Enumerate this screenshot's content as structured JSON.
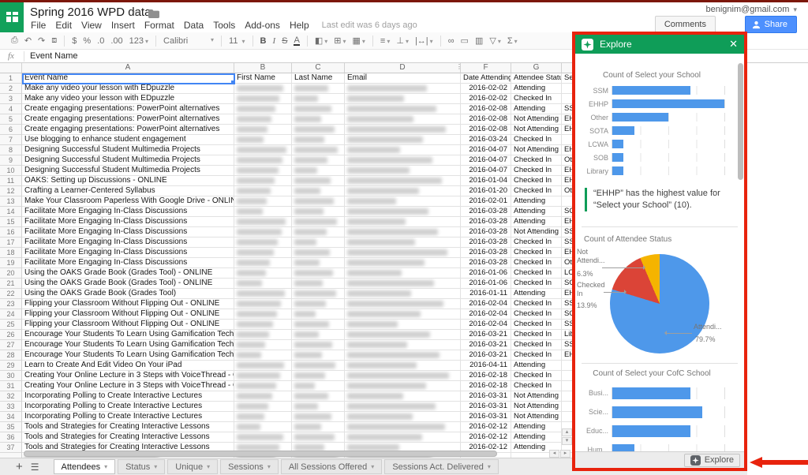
{
  "app": {
    "doc_title": "Spring 2016 WPD data",
    "menu_items": [
      "File",
      "Edit",
      "View",
      "Insert",
      "Format",
      "Data",
      "Tools",
      "Add-ons",
      "Help"
    ],
    "last_edit": "Last edit was 6 days ago",
    "account_email": "benignim@gmail.com",
    "comments_label": "Comments",
    "share_label": "Share"
  },
  "toolbar": {
    "currency": "$",
    "percent": "%",
    "dec_less": ".0",
    "dec_more": ".00",
    "number_format": "123",
    "font_name": "Calibri",
    "font_size": "11",
    "bold": "B",
    "italic": "I",
    "strike": "S",
    "text_color": "A",
    "sum": "Σ"
  },
  "formula_bar": {
    "fx": "fx",
    "value": "Event Name"
  },
  "grid": {
    "column_letters": [
      "A",
      "B",
      "C",
      "D",
      "F",
      "G"
    ],
    "rows": [
      {
        "n": "1",
        "event": "Event Name",
        "b": "First Name",
        "c": "Last Name",
        "d": "Email",
        "date": "Date Attending",
        "status": "Attendee Status",
        "school": "Sele"
      },
      {
        "n": "2",
        "event": "Make any video your lesson with EDpuzzle",
        "date": "2016-02-02",
        "status": "Attending",
        "school": ""
      },
      {
        "n": "3",
        "event": "Make any video your lesson with EDpuzzle",
        "date": "2016-02-02",
        "status": "Checked In",
        "school": ""
      },
      {
        "n": "4",
        "event": "Create engaging presentations: PowerPoint alternatives",
        "date": "2016-02-08",
        "status": "Attending",
        "school": "SSM"
      },
      {
        "n": "5",
        "event": "Create engaging presentations: PowerPoint alternatives",
        "date": "2016-02-08",
        "status": "Not Attending",
        "school": "EHH"
      },
      {
        "n": "6",
        "event": "Create engaging presentations: PowerPoint alternatives",
        "date": "2016-02-08",
        "status": "Not Attending",
        "school": "EHH"
      },
      {
        "n": "7",
        "event": "Use blogging to enhance student engagement",
        "date": "2016-03-24",
        "status": "Checked In",
        "school": ""
      },
      {
        "n": "8",
        "event": "Designing Successful Student Multimedia Projects",
        "date": "2016-04-07",
        "status": "Not Attending",
        "school": "EHH"
      },
      {
        "n": "9",
        "event": "Designing Successful Student Multimedia Projects",
        "date": "2016-04-07",
        "status": "Checked In",
        "school": "Oth"
      },
      {
        "n": "10",
        "event": "Designing Successful Student Multimedia Projects",
        "date": "2016-04-07",
        "status": "Checked In",
        "school": "EHH"
      },
      {
        "n": "11",
        "event": "OAKS: Setting up Discussions - ONLINE",
        "date": "2016-01-04",
        "status": "Checked In",
        "school": "EHH"
      },
      {
        "n": "12",
        "event": "Crafting a Learner-Centered Syllabus",
        "date": "2016-01-20",
        "status": "Checked In",
        "school": "Oth"
      },
      {
        "n": "13",
        "event": "Make Your Classroom Paperless With Google Drive - ONLINE",
        "date": "2016-02-01",
        "status": "Attending",
        "school": ""
      },
      {
        "n": "14",
        "event": "Facilitate More Engaging In-Class Discussions",
        "date": "2016-03-28",
        "status": "Attending",
        "school": "SOT"
      },
      {
        "n": "15",
        "event": "Facilitate More Engaging In-Class Discussions",
        "date": "2016-03-28",
        "status": "Attending",
        "school": "EHH"
      },
      {
        "n": "16",
        "event": "Facilitate More Engaging In-Class Discussions",
        "date": "2016-03-28",
        "status": "Not Attending",
        "school": "SSM"
      },
      {
        "n": "17",
        "event": "Facilitate More Engaging In-Class Discussions",
        "date": "2016-03-28",
        "status": "Checked In",
        "school": "SSM"
      },
      {
        "n": "18",
        "event": "Facilitate More Engaging In-Class Discussions",
        "date": "2016-03-28",
        "status": "Checked In",
        "school": "EHH"
      },
      {
        "n": "19",
        "event": "Facilitate More Engaging In-Class Discussions",
        "date": "2016-03-28",
        "status": "Checked In",
        "school": "Oth"
      },
      {
        "n": "20",
        "event": "Using the OAKS Grade Book (Grades Tool) - ONLINE",
        "date": "2016-01-06",
        "status": "Checked In",
        "school": "LCW"
      },
      {
        "n": "21",
        "event": "Using the OAKS Grade Book (Grades Tool) - ONLINE",
        "date": "2016-01-06",
        "status": "Checked In",
        "school": "SOT"
      },
      {
        "n": "22",
        "event": "Using the OAKS Grade Book (Grades Tool)",
        "date": "2016-01-11",
        "status": "Attending",
        "school": "EHH"
      },
      {
        "n": "23",
        "event": "Flipping your Classroom Without Flipping Out - ONLINE",
        "date": "2016-02-04",
        "status": "Checked In",
        "school": "SSM"
      },
      {
        "n": "24",
        "event": "Flipping your Classroom Without Flipping Out - ONLINE",
        "date": "2016-02-04",
        "status": "Checked In",
        "school": "SOB"
      },
      {
        "n": "25",
        "event": "Flipping your Classroom Without Flipping Out - ONLINE",
        "date": "2016-02-04",
        "status": "Checked In",
        "school": "SSM"
      },
      {
        "n": "26",
        "event": "Encourage Your Students To Learn Using Gamification Techniques in OAKS",
        "date": "2016-03-21",
        "status": "Checked In",
        "school": "Libr"
      },
      {
        "n": "27",
        "event": "Encourage Your Students To Learn Using Gamification Techniques in OAKS",
        "date": "2016-03-21",
        "status": "Checked In",
        "school": "SSM"
      },
      {
        "n": "28",
        "event": "Encourage Your Students To Learn Using Gamification Techniques in OAKS",
        "date": "2016-03-21",
        "status": "Checked In",
        "school": "EHH"
      },
      {
        "n": "29",
        "event": "Learn to Create And Edit Video On Your iPad",
        "date": "2016-04-11",
        "status": "Attending",
        "school": ""
      },
      {
        "n": "30",
        "event": "Creating Your Online Lecture in 3 Steps with VoiceThread - ONLINE",
        "date": "2016-02-18",
        "status": "Checked In",
        "school": ""
      },
      {
        "n": "31",
        "event": "Creating Your Online Lecture in 3 Steps with VoiceThread - ONLINE",
        "date": "2016-02-18",
        "status": "Checked In",
        "school": ""
      },
      {
        "n": "32",
        "event": "Incorporating Polling to Create Interactive Lectures",
        "date": "2016-03-31",
        "status": "Not Attending",
        "school": ""
      },
      {
        "n": "33",
        "event": "Incorporating Polling to Create Interactive Lectures",
        "date": "2016-03-31",
        "status": "Not Attending",
        "school": ""
      },
      {
        "n": "34",
        "event": "Incorporating Polling to Create Interactive Lectures",
        "date": "2016-03-31",
        "status": "Not Attending",
        "school": ""
      },
      {
        "n": "35",
        "event": "Tools and Strategies for Creating Interactive Lessons",
        "date": "2016-02-12",
        "status": "Attending",
        "school": ""
      },
      {
        "n": "36",
        "event": "Tools and Strategies for Creating Interactive Lessons",
        "date": "2016-02-12",
        "status": "Attending",
        "school": ""
      },
      {
        "n": "37",
        "event": "Tools and Strategies for Creating Interactive Lessons",
        "date": "2016-02-12",
        "status": "Attending",
        "school": ""
      },
      {
        "n": "",
        "blur_all": true,
        "event": "",
        "date": "",
        "status": "",
        "school": ""
      }
    ]
  },
  "sheet_tabs": {
    "tabs": [
      {
        "label": "Attendees",
        "active": true
      },
      {
        "label": "Status",
        "active": false
      },
      {
        "label": "Unique",
        "active": false
      },
      {
        "label": "Sessions",
        "active": false
      },
      {
        "label": "All Sessions Offered",
        "active": false
      },
      {
        "label": "Sessions Act. Delivered",
        "active": false
      }
    ]
  },
  "explore": {
    "title": "Explore",
    "insight": "“EHHP” has the highest value for “Select your School” (10).",
    "footer_button": "Explore"
  },
  "chart_data": [
    {
      "type": "bar",
      "orientation": "horizontal",
      "title": "Count of Select your School",
      "categories": [
        "SSM",
        "EHHP",
        "Other",
        "SOTA",
        "LCWA",
        "SOB",
        "Library"
      ],
      "values": [
        7,
        10,
        5,
        2,
        1,
        1,
        1
      ],
      "xlim": [
        0,
        10
      ],
      "grid": true,
      "bar_color": "#4e98ea"
    },
    {
      "type": "pie",
      "title": "Count of Attendee Status",
      "slices": [
        {
          "label": "Attendi...",
          "pct": 79.7,
          "pct_label": "79.7%",
          "color": "#4e98ea"
        },
        {
          "label_line1": "Checked",
          "label_line2": "In",
          "pct": 13.9,
          "pct_label": "13.9%",
          "color": "#db4437"
        },
        {
          "label_line1": "Not",
          "label_line2": "Attendi...",
          "pct": 6.3,
          "pct_label": "6.3%",
          "color": "#f5b400"
        }
      ]
    },
    {
      "type": "bar",
      "orientation": "horizontal",
      "title": "Count of Select your CofC School",
      "categories": [
        "Busi...",
        "Scie...",
        "Educ...",
        "Hum..."
      ],
      "values": [
        7,
        8,
        7,
        2
      ],
      "xlim": [
        0,
        10
      ],
      "grid": true,
      "bar_color": "#4e98ea"
    }
  ],
  "colors": {
    "brand_green": "#0f9d58",
    "share_blue": "#4d90fe",
    "selection_blue": "#4285f4",
    "highlight_red": "#e8230d",
    "chart_blue": "#4e98ea",
    "pie_red": "#db4437",
    "pie_orange": "#f5b400"
  }
}
